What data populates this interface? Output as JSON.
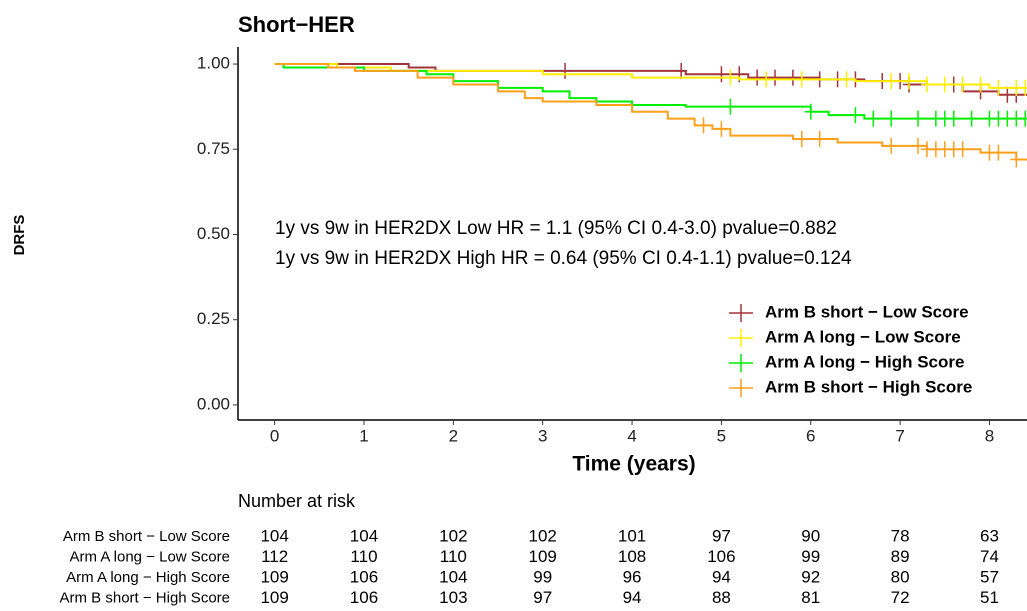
{
  "chart_data": {
    "type": "km",
    "title": "Short−HER",
    "xlabel": "Time (years)",
    "ylabel": "DRFS",
    "xlim": [
      -0.41,
      8.42
    ],
    "ylim": [
      -0.05,
      1.05
    ],
    "xticks": [
      0,
      1,
      2,
      3,
      4,
      5,
      6,
      7,
      8
    ],
    "yticks": [
      {
        "value": 0,
        "label": "0.00"
      },
      {
        "value": 0.25,
        "label": "0.25"
      },
      {
        "value": 0.5,
        "label": "0.50"
      },
      {
        "value": 0.75,
        "label": "0.75"
      },
      {
        "value": 1,
        "label": "1.00"
      }
    ],
    "legend": "bottom-right",
    "annotations": [
      "1y vs 9w in HER2DX Low HR = 1.1 (95% CI 0.4-3.0) pvalue=0.882",
      "1y vs 9w in HER2DX High HR = 0.64 (95% CI 0.4-1.1) pvalue=0.124"
    ],
    "series": [
      {
        "name": "Arm B short − Low Score",
        "color": "#a3343a",
        "x": [
          0,
          1.5,
          1.8,
          4.6,
          5.3,
          6.1,
          6.6,
          7.1,
          7.7,
          8.1
        ],
        "values": [
          1,
          0.99,
          0.98,
          0.97,
          0.96,
          0.955,
          0.95,
          0.94,
          0.92,
          0.91
        ],
        "censor": [
          3.25,
          4.55,
          5.0,
          5.2,
          5.4,
          5.6,
          5.8,
          6.1,
          6.3,
          6.5,
          6.8,
          7.0,
          7.1,
          7.6,
          7.9,
          8.2,
          8.3
        ]
      },
      {
        "name": "Arm A long − Low Score",
        "color": "#ffee00",
        "x": [
          0,
          0.7,
          1.3,
          3.0,
          4.0,
          5.2,
          6.5,
          7.3,
          8.0
        ],
        "values": [
          1,
          0.99,
          0.98,
          0.97,
          0.96,
          0.955,
          0.95,
          0.94,
          0.93
        ],
        "censor": [
          5.1,
          5.5,
          5.9,
          6.4,
          6.9,
          7.1,
          7.3,
          7.5,
          7.7,
          7.9,
          8.1,
          8.3,
          8.4
        ]
      },
      {
        "name": "Arm A long − High Score",
        "color": "#00ee00",
        "x": [
          0,
          0.1,
          1.0,
          1.7,
          2.0,
          2.5,
          3.0,
          3.3,
          3.6,
          4.0,
          4.6,
          6.0,
          6.2,
          6.6
        ],
        "values": [
          1,
          0.99,
          0.98,
          0.97,
          0.95,
          0.93,
          0.92,
          0.9,
          0.89,
          0.88,
          0.875,
          0.86,
          0.85,
          0.84
        ],
        "censor": [
          5.1,
          6.0,
          6.5,
          6.7,
          6.9,
          7.2,
          7.4,
          7.5,
          7.6,
          7.8,
          8.0,
          8.1,
          8.2,
          8.3,
          8.4
        ]
      },
      {
        "name": "Arm B short − High Score",
        "color": "#ff9f1a",
        "x": [
          0,
          0.6,
          0.9,
          1.6,
          2.0,
          2.5,
          2.8,
          3.0,
          3.6,
          4.0,
          4.4,
          4.7,
          4.9,
          5.1,
          5.8,
          6.3,
          6.8,
          7.3,
          7.9,
          8.3
        ],
        "values": [
          1,
          0.99,
          0.98,
          0.96,
          0.94,
          0.92,
          0.9,
          0.89,
          0.88,
          0.86,
          0.84,
          0.82,
          0.81,
          0.79,
          0.78,
          0.77,
          0.76,
          0.75,
          0.74,
          0.72
        ],
        "censor": [
          4.8,
          5.0,
          5.9,
          6.1,
          6.9,
          7.2,
          7.3,
          7.4,
          7.5,
          7.6,
          7.7,
          8.0,
          8.1,
          8.3
        ]
      }
    ],
    "risk_table": {
      "title": "Number at risk",
      "rows": [
        {
          "name": "Arm B short − Low Score",
          "color": "#a3343a",
          "values": [
            104,
            104,
            102,
            102,
            101,
            97,
            90,
            78,
            63
          ]
        },
        {
          "name": "Arm A long − Low Score",
          "color": "#ffee00",
          "values": [
            112,
            110,
            110,
            109,
            108,
            106,
            99,
            89,
            74
          ]
        },
        {
          "name": "Arm A long − High Score",
          "color": "#00ee00",
          "values": [
            109,
            106,
            104,
            99,
            96,
            94,
            92,
            80,
            57
          ]
        },
        {
          "name": "Arm B short − High Score",
          "color": "#ff9f1a",
          "values": [
            109,
            106,
            103,
            97,
            94,
            88,
            81,
            72,
            51
          ]
        }
      ]
    }
  }
}
